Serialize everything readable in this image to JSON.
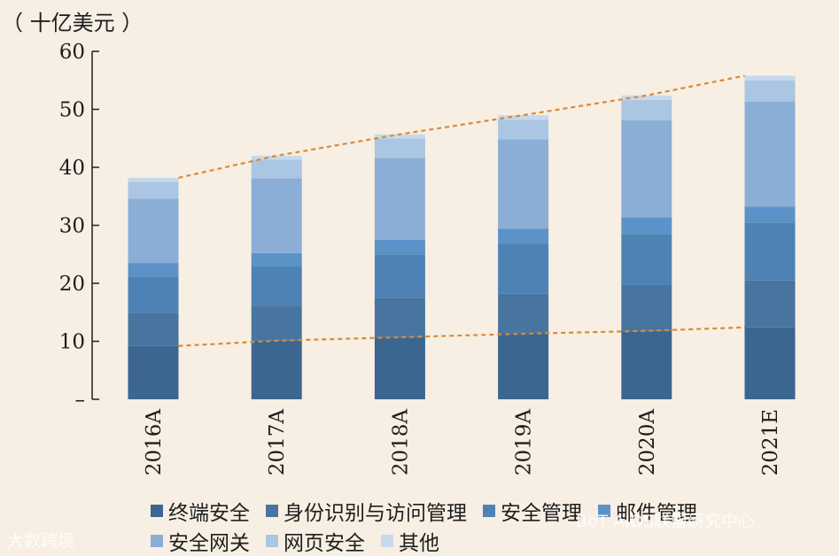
{
  "unit_label": "（ 十亿美元 ）",
  "chart_data": {
    "type": "bar",
    "stacked": true,
    "categories": [
      "2016A",
      "2017A",
      "2018A",
      "2019A",
      "2020A",
      "2021E"
    ],
    "ylim": [
      0,
      60
    ],
    "yticks": [
      {
        "value": 0,
        "label": "–"
      },
      {
        "value": 10,
        "label": "10"
      },
      {
        "value": 20,
        "label": "20"
      },
      {
        "value": 30,
        "label": "30"
      },
      {
        "value": 40,
        "label": "40"
      },
      {
        "value": 50,
        "label": "50"
      },
      {
        "value": 60,
        "label": "60"
      }
    ],
    "series": [
      {
        "name": "终端安全",
        "color": "#3a6690",
        "values": [
          9.2,
          10.1,
          10.7,
          11.3,
          11.8,
          12.4
        ]
      },
      {
        "name": "身份识别与访问管理",
        "color": "#4775a0",
        "values": [
          5.7,
          6.0,
          6.8,
          6.9,
          7.9,
          8.1
        ]
      },
      {
        "name": "安全管理",
        "color": "#4f82b4",
        "values": [
          6.3,
          6.9,
          7.5,
          8.6,
          8.8,
          10.0
        ]
      },
      {
        "name": "邮件管理",
        "color": "#5b93c9",
        "values": [
          2.3,
          2.2,
          2.5,
          2.6,
          2.9,
          2.7
        ]
      },
      {
        "name": "安全网关",
        "color": "#8aaed6",
        "values": [
          11.1,
          12.9,
          14.1,
          15.4,
          16.7,
          18.1
        ]
      },
      {
        "name": "网页安全",
        "color": "#aac6e3",
        "values": [
          2.9,
          3.2,
          3.4,
          3.4,
          3.5,
          3.7
        ]
      },
      {
        "name": "其他",
        "color": "#c7d9ec",
        "values": [
          0.7,
          0.7,
          0.7,
          0.8,
          0.8,
          0.8
        ]
      }
    ],
    "trend_colors": "#d98a3c"
  },
  "watermarks": {
    "left": "大数跨境",
    "right": "BoT AIOS联盟研究中心"
  }
}
